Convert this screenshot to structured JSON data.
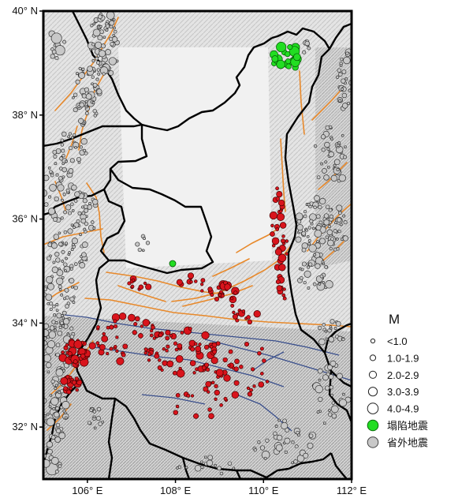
{
  "map": {
    "x_ticks": [
      {
        "value": 106,
        "label": "106° E"
      },
      {
        "value": 108,
        "label": "108° E"
      },
      {
        "value": 110,
        "label": "110° E"
      },
      {
        "value": 112,
        "label": "112° E"
      }
    ],
    "y_ticks": [
      {
        "value": 40,
        "label": "40° N"
      },
      {
        "value": 38,
        "label": "38° N"
      },
      {
        "value": 36,
        "label": "36° N"
      },
      {
        "value": 34,
        "label": "34° N"
      },
      {
        "value": 32,
        "label": "32° N"
      }
    ],
    "lon_range": [
      105,
      112
    ],
    "lat_range": [
      31,
      40
    ],
    "colors": {
      "local_quake": "#d9141c",
      "collapse_quake": "#22dd22",
      "outside_quake": "#c8c8c8",
      "fault_orange": "#e8892b",
      "fault_blue": "#3a4f8c",
      "boundary": "#000000"
    }
  },
  "legend": {
    "title": "M",
    "items": [
      {
        "label": "<1.0",
        "kind": "size"
      },
      {
        "label": "1.0-1.9",
        "kind": "size"
      },
      {
        "label": "2.0-2.9",
        "kind": "size"
      },
      {
        "label": "3.0-3.9",
        "kind": "size"
      },
      {
        "label": "4.0-4.9",
        "kind": "size"
      },
      {
        "label": "塌陷地震",
        "kind": "collapse"
      },
      {
        "label": "省外地震",
        "kind": "outside"
      }
    ]
  }
}
